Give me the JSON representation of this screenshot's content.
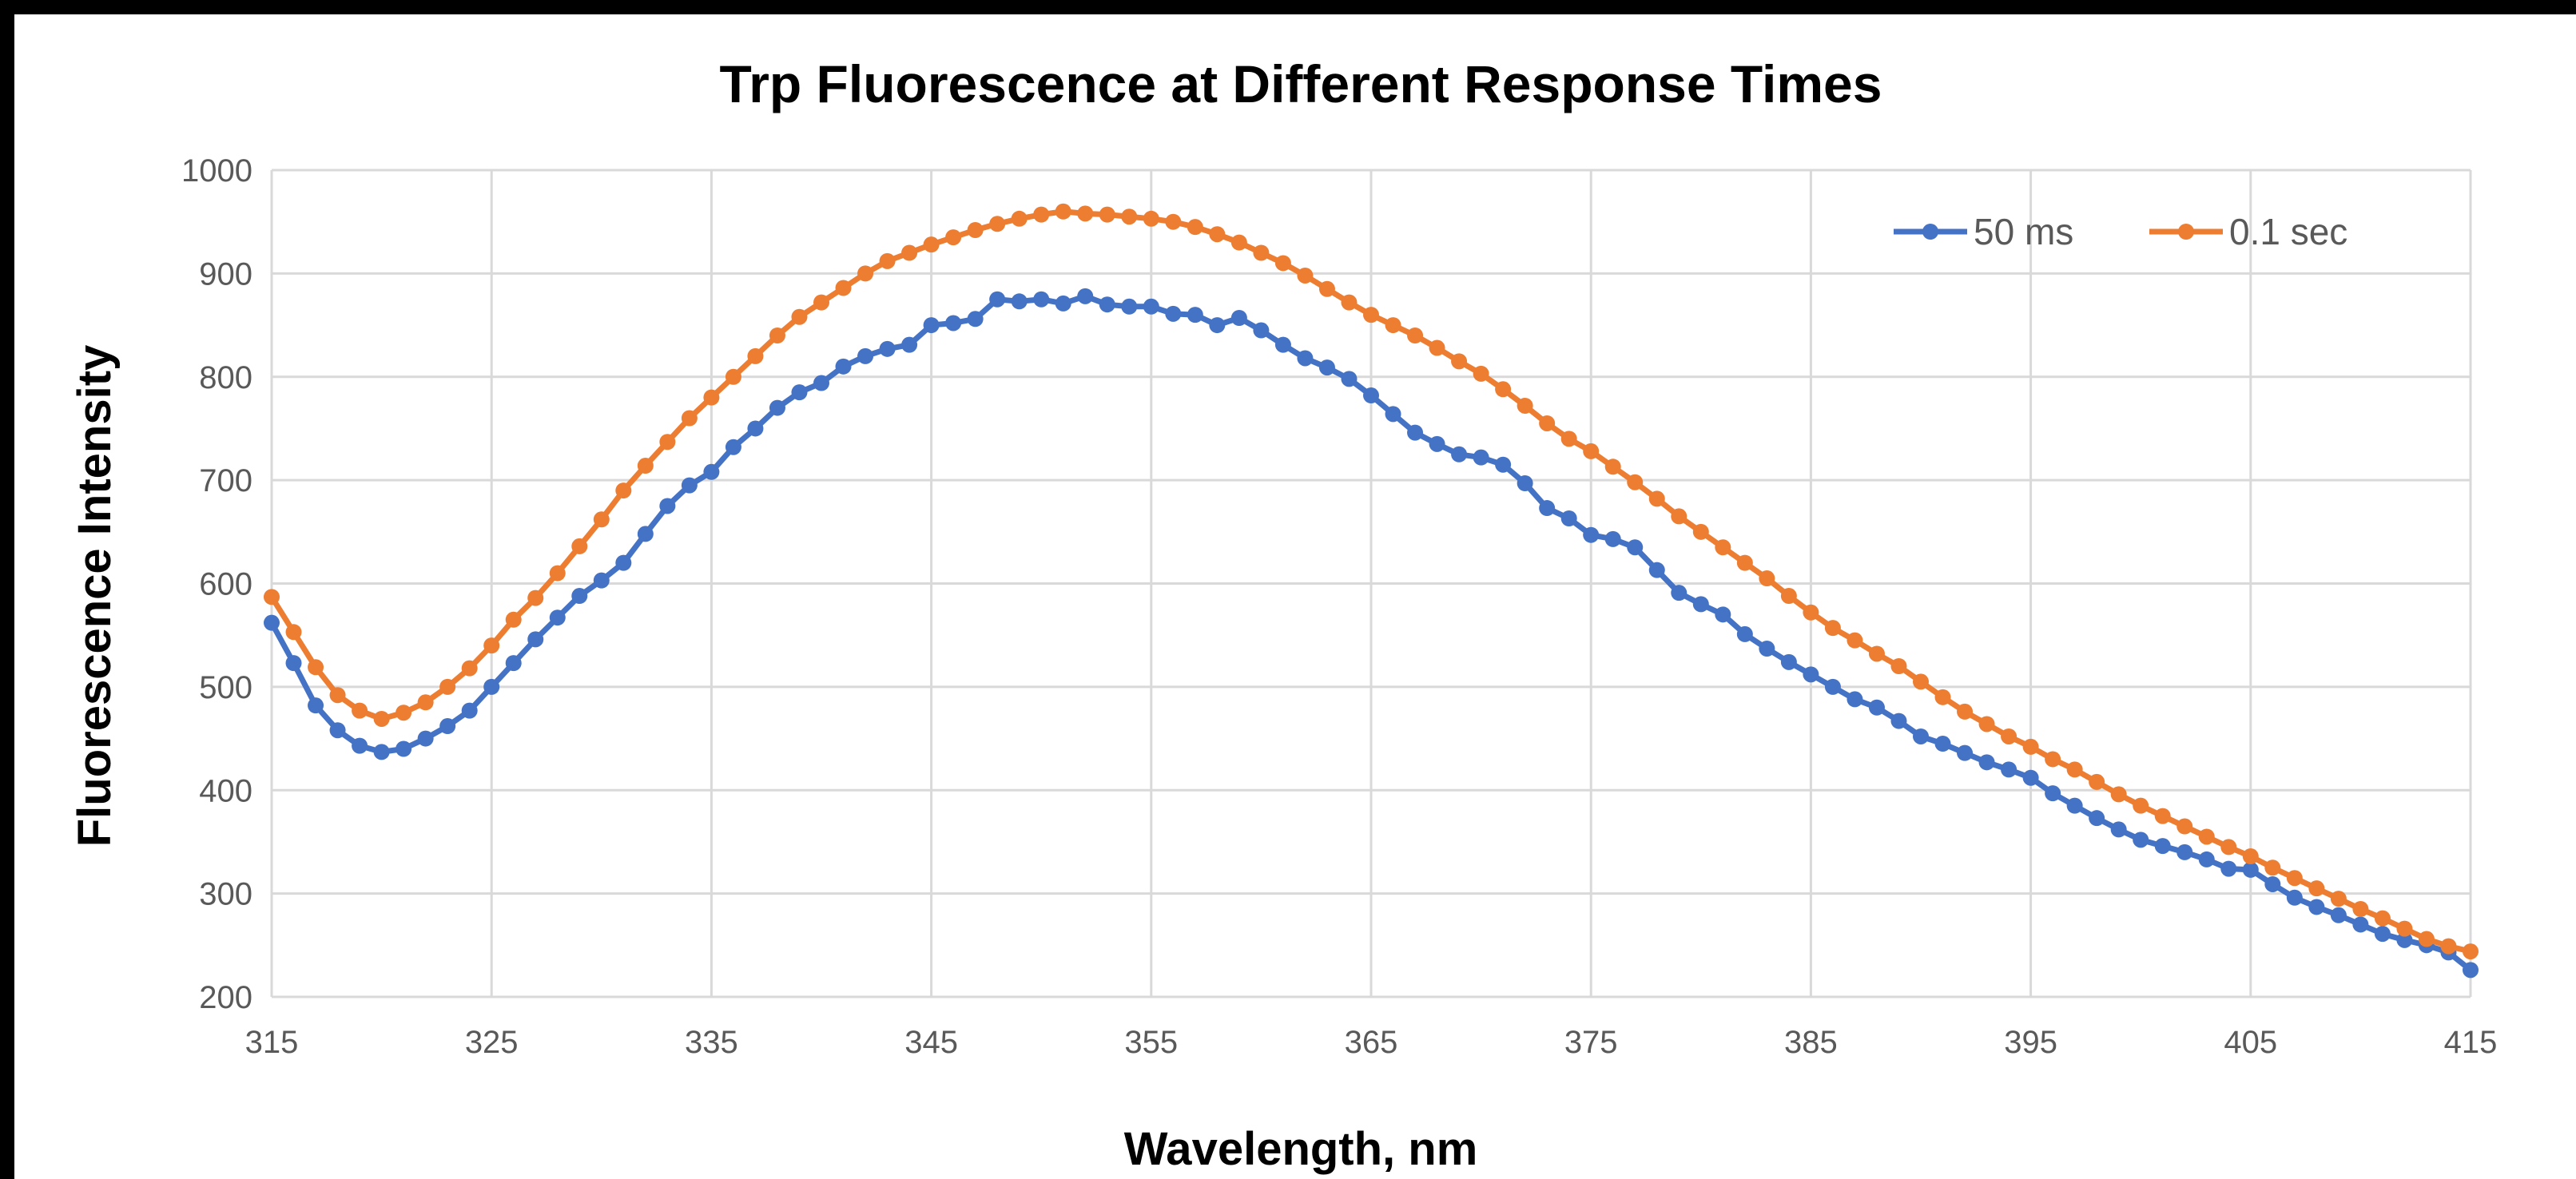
{
  "chart_data": {
    "type": "line",
    "title": "Trp Fluorescence at Different Response Times",
    "xlabel": "Wavelength, nm",
    "ylabel": "Fluorescence Intensity",
    "xlim": [
      315,
      415
    ],
    "ylim": [
      200,
      1000
    ],
    "x_ticks": [
      "315",
      "325",
      "335",
      "345",
      "355",
      "365",
      "375",
      "385",
      "395",
      "405",
      "415"
    ],
    "y_ticks": [
      "200",
      "300",
      "400",
      "500",
      "600",
      "700",
      "800",
      "900",
      "1000"
    ],
    "grid": true,
    "legend": "top-right",
    "x": [
      315,
      316,
      317,
      318,
      319,
      320,
      321,
      322,
      323,
      324,
      325,
      326,
      327,
      328,
      329,
      330,
      331,
      332,
      333,
      334,
      335,
      336,
      337,
      338,
      339,
      340,
      341,
      342,
      343,
      344,
      345,
      346,
      347,
      348,
      349,
      350,
      351,
      352,
      353,
      354,
      355,
      356,
      357,
      358,
      359,
      360,
      361,
      362,
      363,
      364,
      365,
      366,
      367,
      368,
      369,
      370,
      371,
      372,
      373,
      374,
      375,
      376,
      377,
      378,
      379,
      380,
      381,
      382,
      383,
      384,
      385,
      386,
      387,
      388,
      389,
      390,
      391,
      392,
      393,
      394,
      395,
      396,
      397,
      398,
      399,
      400,
      401,
      402,
      403,
      404,
      405,
      406,
      407,
      408,
      409,
      410,
      411,
      412,
      413,
      414,
      415
    ],
    "series": [
      {
        "name": "50 ms",
        "color": "#4472c4",
        "values": [
          562,
          523,
          482,
          458,
          443,
          437,
          440,
          450,
          462,
          477,
          500,
          523,
          546,
          567,
          588,
          603,
          620,
          648,
          675,
          695,
          708,
          732,
          750,
          770,
          785,
          794,
          810,
          820,
          827,
          831,
          850,
          852,
          856,
          875,
          873,
          875,
          871,
          878,
          870,
          868,
          868,
          861,
          860,
          850,
          857,
          845,
          831,
          818,
          809,
          798,
          782,
          764,
          746,
          735,
          725,
          722,
          715,
          697,
          673,
          663,
          647,
          643,
          635,
          613,
          591,
          580,
          570,
          551,
          537,
          524,
          512,
          500,
          488,
          480,
          467,
          452,
          445,
          436,
          427,
          420,
          412,
          397,
          385,
          373,
          362,
          352,
          346,
          340,
          333,
          324,
          323,
          309,
          296,
          287,
          279,
          270,
          261,
          255,
          250,
          243,
          226
        ]
      },
      {
        "name": "0.1 sec",
        "color": "#ed7d31",
        "values": [
          587,
          553,
          519,
          492,
          477,
          469,
          475,
          485,
          500,
          518,
          540,
          565,
          586,
          610,
          636,
          662,
          690,
          714,
          737,
          760,
          780,
          800,
          820,
          840,
          858,
          872,
          886,
          900,
          912,
          920,
          928,
          935,
          942,
          948,
          953,
          957,
          960,
          958,
          957,
          955,
          953,
          950,
          945,
          938,
          930,
          920,
          910,
          898,
          885,
          872,
          860,
          850,
          840,
          828,
          815,
          803,
          788,
          772,
          755,
          740,
          728,
          713,
          698,
          682,
          665,
          650,
          635,
          620,
          605,
          588,
          572,
          557,
          545,
          532,
          520,
          505,
          490,
          476,
          464,
          452,
          442,
          430,
          420,
          408,
          396,
          385,
          375,
          365,
          355,
          345,
          336,
          325,
          315,
          305,
          295,
          285,
          276,
          266,
          256,
          249,
          244
        ]
      }
    ]
  }
}
